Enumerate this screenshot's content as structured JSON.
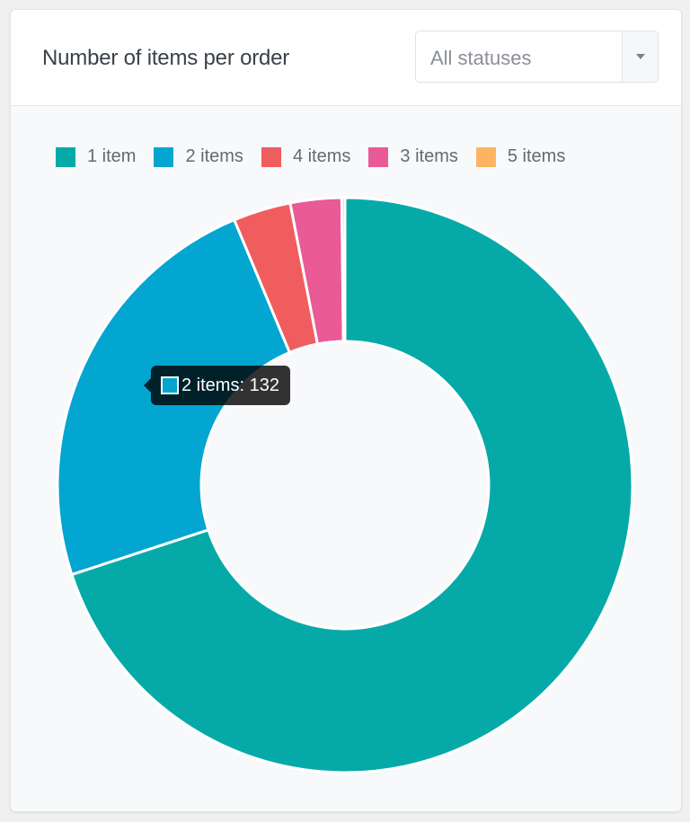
{
  "card": {
    "title": "Number of items per order",
    "status_filter": {
      "selected": "All statuses"
    }
  },
  "legend": [
    {
      "label": "1 item",
      "color": "#05aaa8"
    },
    {
      "label": "2 items",
      "color": "#03a5d1"
    },
    {
      "label": "4 items",
      "color": "#f05d5e"
    },
    {
      "label": "3 items",
      "color": "#ea5a97"
    },
    {
      "label": "5 items",
      "color": "#fdb462"
    }
  ],
  "tooltip": {
    "label": "2 items: 132",
    "color": "#03a5d1"
  },
  "chart_data": {
    "type": "pie",
    "variant": "doughnut",
    "title": "Number of items per order",
    "categories": [
      "1 item",
      "2 items",
      "4 items",
      "3 items",
      "5 items"
    ],
    "values": [
      389,
      132,
      18,
      16,
      1
    ],
    "colors": [
      "#05aaa8",
      "#03a5d1",
      "#f05d5e",
      "#ea5a97",
      "#fdb462"
    ],
    "legend_position": "top",
    "tooltip_visible": "2 items: 132",
    "note": "Only the '2 items' value (132) is labeled; other values are estimated from slice angles."
  }
}
